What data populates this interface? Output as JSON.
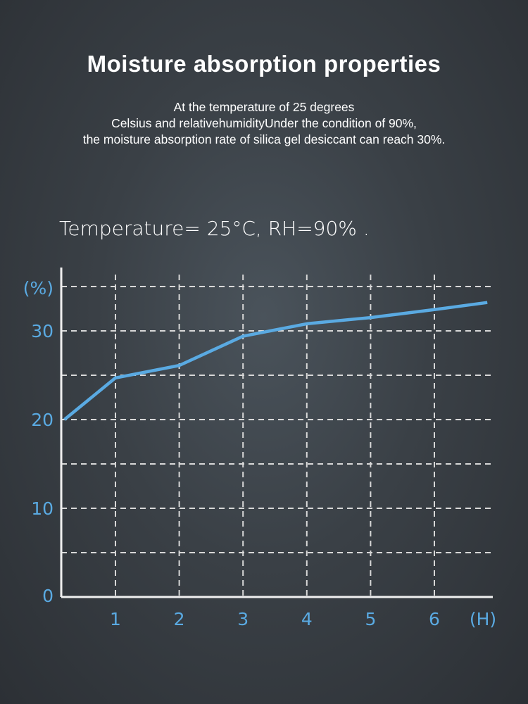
{
  "header": {
    "title": "Moisture absorption properties",
    "subtitle_lines": [
      "At the temperature of 25 degrees",
      "Celsius and relativehumidityUnder the condition of 90%,",
      "the moisture absorption rate of silica gel desiccant can reach 30%."
    ],
    "condition": "Temperature= 25°C, RH=90% ."
  },
  "colors": {
    "line": "#5aaae2",
    "grid": "#d8d8d8",
    "axis": "#f0f0f0"
  },
  "chart_data": {
    "type": "line",
    "title": "Temperature= 25°C, RH=90% .",
    "xlabel": "(H)",
    "ylabel": "(%)",
    "xlim": [
      0.15,
      6.95
    ],
    "ylim": [
      0,
      36
    ],
    "x_ticks": [
      1,
      2,
      3,
      4,
      5,
      6
    ],
    "y_ticks": [
      0,
      10,
      20,
      30
    ],
    "y_grid": [
      5,
      10,
      15,
      20,
      25,
      30,
      35
    ],
    "grid": true,
    "series": [
      {
        "name": "Moisture absorption",
        "x": [
          0.2,
          1,
          2,
          3,
          4,
          5,
          6,
          6.83
        ],
        "y": [
          20,
          24.7,
          26.1,
          29.4,
          30.8,
          31.5,
          32.4,
          33.2
        ]
      }
    ]
  }
}
